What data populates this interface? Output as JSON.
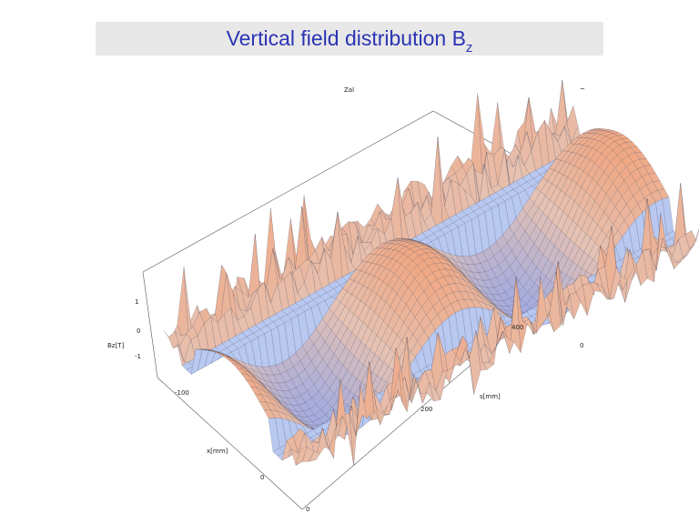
{
  "title": {
    "main": "Vertical field distribution B",
    "subscript": "z"
  },
  "chart_data": {
    "type": "surface3d",
    "title": "Vertical field distribution Bz",
    "zlabel": "Bz[T]",
    "xlabel": "x[mm]",
    "ylabel": "s[mm]",
    "z_ticks": [
      "1",
      "0",
      "-1"
    ],
    "x_ticks": [
      "-100",
      "0"
    ],
    "y_ticks": [
      "0",
      "200",
      "400"
    ],
    "box_labels": [
      "Zal",
      "~",
      "0"
    ],
    "surface": {
      "description_free": true,
      "periods": 2,
      "peak_field": 1,
      "x_range": [
        -100,
        100
      ],
      "s_range": [
        0,
        500
      ]
    },
    "colors": {
      "high": "#f2a27a",
      "mid": "#e6c2b2",
      "low": "#9aa8e6",
      "flat": "#b8c8f0",
      "edge": "#1a2440"
    }
  }
}
